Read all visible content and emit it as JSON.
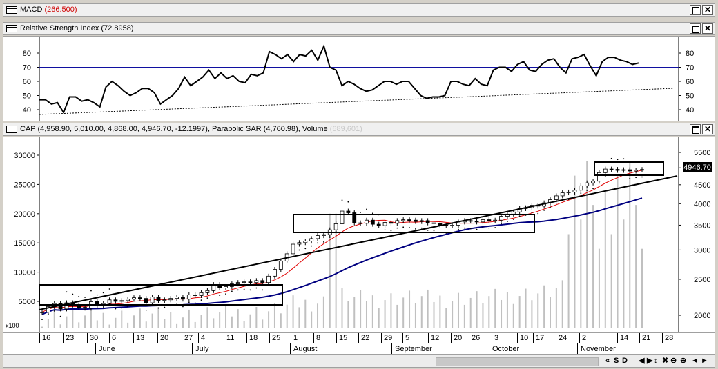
{
  "macd": {
    "title": "MACD",
    "value": "(266.500)"
  },
  "rsi": {
    "title": "Relative Strength Index (72.8958)",
    "yticks": [
      "80",
      "70",
      "60",
      "50",
      "40"
    ],
    "values": [
      47,
      47,
      44,
      45,
      38,
      49,
      49,
      46,
      47,
      45,
      42,
      56,
      60,
      57,
      53,
      50,
      52,
      55,
      55,
      52,
      44,
      47,
      50,
      55,
      63,
      57,
      60,
      63,
      68,
      62,
      66,
      62,
      64,
      60,
      59,
      65,
      64,
      66,
      81,
      79,
      76,
      79,
      74,
      79,
      78,
      82,
      75,
      85,
      70,
      68,
      57,
      60,
      58,
      55,
      53,
      54,
      57,
      60,
      60,
      58,
      60,
      60,
      55,
      50,
      48,
      49,
      49,
      50,
      60,
      60,
      58,
      57,
      62,
      58,
      57,
      68,
      70,
      70,
      67,
      72,
      74,
      68,
      67,
      72,
      75,
      76,
      70,
      66,
      76,
      77,
      79,
      71,
      64,
      74,
      77,
      77,
      75,
      74,
      72,
      73
    ]
  },
  "price": {
    "title": "CAP (4,958.90, 5,010.00, 4,868.00, 4,946.70, -12.1997), Parabolic SAR (4,760.98), Volume",
    "volume_label": "(689,601)",
    "last_badge": "4946.70",
    "yticks_left": [
      "30000",
      "25000",
      "20000",
      "15000",
      "10000",
      "5000"
    ],
    "yticks_right": [
      "5500",
      "5000",
      "4500",
      "4000",
      "3500",
      "3000",
      "2500",
      "2000"
    ],
    "unit_label": "x100",
    "closes": [
      2040,
      2110,
      2150,
      2080,
      2160,
      2130,
      2100,
      2090,
      2175,
      2120,
      2150,
      2200,
      2180,
      2190,
      2210,
      2230,
      2220,
      2160,
      2240,
      2190,
      2200,
      2220,
      2240,
      2210,
      2270,
      2260,
      2300,
      2330,
      2420,
      2370,
      2390,
      2430,
      2450,
      2460,
      2450,
      2480,
      2450,
      2550,
      2660,
      2800,
      2930,
      3110,
      3140,
      3170,
      3220,
      3280,
      3300,
      3400,
      3530,
      3820,
      3780,
      3550,
      3540,
      3610,
      3520,
      3490,
      3560,
      3540,
      3600,
      3620,
      3610,
      3580,
      3600,
      3550,
      3540,
      3500,
      3490,
      3500,
      3570,
      3600,
      3590,
      3570,
      3620,
      3600,
      3610,
      3700,
      3750,
      3800,
      3880,
      3900,
      3960,
      3940,
      4020,
      4100,
      4200,
      4280,
      4300,
      4350,
      4470,
      4550,
      4600,
      4850,
      4960,
      4950,
      4920,
      4940,
      4900,
      4930,
      4946.7
    ],
    "chart_type": "candlestick with red moving average, navy moving average, parabolic SAR dots, grey volume bars"
  },
  "xaxis": {
    "days": [
      "16",
      "23",
      "30",
      "6",
      "13",
      "20",
      "27",
      "4",
      "11",
      "18",
      "25",
      "1",
      "8",
      "15",
      "22",
      "29",
      "5",
      "12",
      "20",
      "26",
      "3",
      "10",
      "17",
      "24",
      "2",
      "",
      "14",
      "21",
      "28"
    ],
    "months": [
      "June",
      "July",
      "August",
      "September",
      "October",
      "November"
    ]
  },
  "nav": [
    "«",
    "S",
    "D",
    "◀",
    "▶",
    "↕",
    "✖",
    "⊖",
    "⊕",
    "◄",
    "►"
  ]
}
